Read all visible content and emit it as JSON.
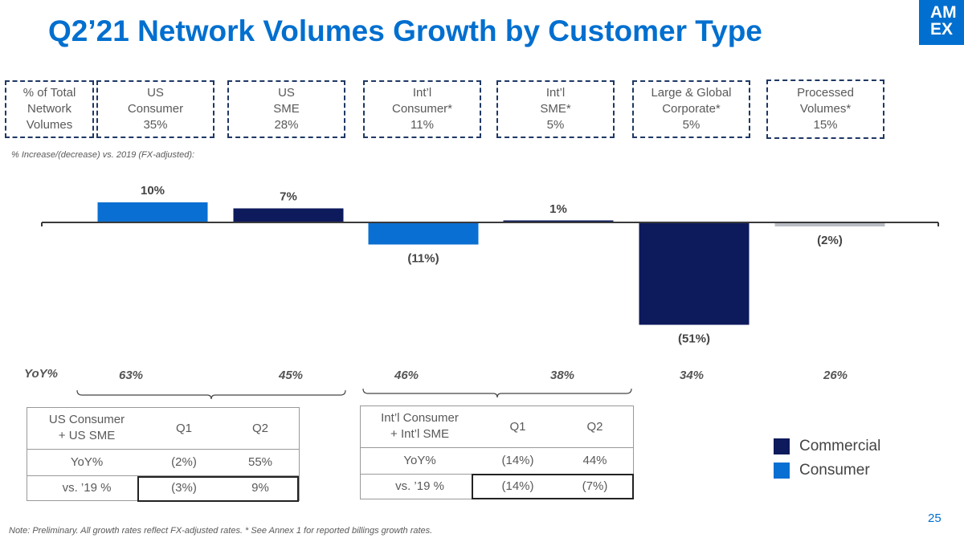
{
  "title": "Q2’21 Network Volumes Growth by Customer Type",
  "logo": {
    "line1": "AM",
    "line2": "EX"
  },
  "colors": {
    "commercial": "#0d1a5c",
    "consumer": "#0a6fd2",
    "processed": "#b8bcc2",
    "brand": "#006fcf"
  },
  "boxes": [
    {
      "label": "% of Total\nNetwork\nVolumes"
    },
    {
      "label": "US\nConsumer\n35%"
    },
    {
      "label": "US\nSME\n28%"
    },
    {
      "label": "Int’l\nConsumer*\n11%"
    },
    {
      "label": "Int’l\nSME*\n5%"
    },
    {
      "label": "Large & Global\nCorporate*\n5%"
    },
    {
      "label": "Processed\nVolumes*\n15%"
    }
  ],
  "subnote": "% Increase/(decrease) vs. 2019 (FX-adjusted):",
  "chart_data": {
    "type": "bar",
    "title": "% Increase/(decrease) vs. 2019 (FX-adjusted)",
    "categories": [
      "US Consumer",
      "US SME",
      "Int’l Consumer",
      "Int’l SME",
      "Large & Global Corporate",
      "Processed Volumes"
    ],
    "values": [
      10,
      7,
      -11,
      1,
      -51,
      -2
    ],
    "value_labels": [
      "10%",
      "7%",
      "(11%)",
      "1%",
      "(51%)",
      "(2%)"
    ],
    "series_type": [
      "consumer",
      "commercial",
      "consumer",
      "commercial",
      "commercial",
      "processed"
    ],
    "ylim": [
      -55,
      12
    ]
  },
  "yoy": {
    "label": "YoY%",
    "values": [
      "63%",
      "45%",
      "46%",
      "38%",
      "34%",
      "26%"
    ]
  },
  "table_us": {
    "header": [
      "US Consumer\n+ US SME",
      "Q1",
      "Q2"
    ],
    "yoy_row": [
      "YoY%",
      "(2%)",
      "55%"
    ],
    "vs19_row": [
      "vs. ’19 %",
      "(3%)",
      "9%"
    ]
  },
  "table_intl": {
    "header": [
      "Int’l Consumer\n+ Int’l SME",
      "Q1",
      "Q2"
    ],
    "yoy_row": [
      "YoY%",
      "(14%)",
      "44%"
    ],
    "vs19_row": [
      "vs. ’19 %",
      "(14%)",
      "(7%)"
    ]
  },
  "legend": [
    {
      "label": "Commercial",
      "color": "#0d1a5c"
    },
    {
      "label": "Consumer",
      "color": "#0a6fd2"
    }
  ],
  "note": "Note: Preliminary. All growth rates reflect FX-adjusted rates. * See Annex 1 for reported billings growth rates.",
  "page_number": "25"
}
